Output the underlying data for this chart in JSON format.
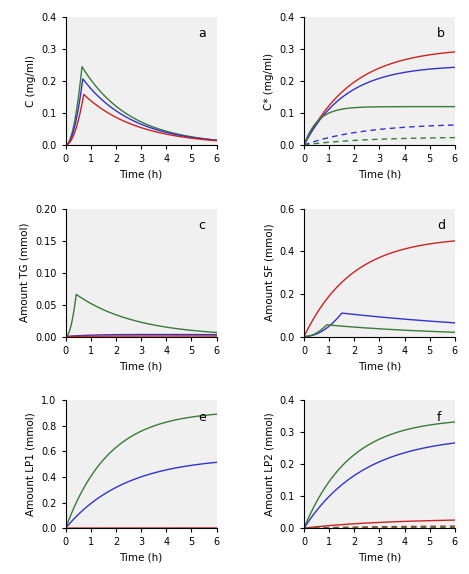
{
  "panel_labels": [
    "a",
    "b",
    "c",
    "d",
    "e",
    "f"
  ],
  "t_max": 6.0,
  "colors": {
    "green": "#3A7A3A",
    "blue": "#3333CC",
    "red": "#CC2222",
    "gray": "#888888"
  },
  "panel_a": {
    "ylabel": "C (mg/ml)",
    "xlabel": "Time (h)",
    "ylim": [
      0,
      0.4
    ],
    "yticks": [
      0,
      0.1,
      0.2,
      0.3,
      0.4
    ],
    "xlim": [
      0,
      6
    ],
    "xticks": [
      0,
      1,
      2,
      3,
      4,
      5,
      6
    ]
  },
  "panel_b": {
    "ylabel": "C* (mg/ml)",
    "xlabel": "Time (h)",
    "ylim": [
      0,
      0.4
    ],
    "yticks": [
      0,
      0.1,
      0.2,
      0.3,
      0.4
    ],
    "xlim": [
      0,
      6
    ],
    "xticks": [
      0,
      1,
      2,
      3,
      4,
      5,
      6
    ]
  },
  "panel_c": {
    "ylabel": "Amount TG (mmol)",
    "xlabel": "Time (h)",
    "ylim": [
      0,
      0.2
    ],
    "yticks": [
      0,
      0.05,
      0.1,
      0.15,
      0.2
    ],
    "xlim": [
      0,
      6
    ],
    "xticks": [
      0,
      1,
      2,
      3,
      4,
      5,
      6
    ]
  },
  "panel_d": {
    "ylabel": "Amount SF (mmol)",
    "xlabel": "Time (h)",
    "ylim": [
      0,
      0.6
    ],
    "yticks": [
      0,
      0.2,
      0.4,
      0.6
    ],
    "xlim": [
      0,
      6
    ],
    "xticks": [
      0,
      1,
      2,
      3,
      4,
      5,
      6
    ]
  },
  "panel_e": {
    "ylabel": "Amount LP1 (mmol)",
    "xlabel": "Time (h)",
    "ylim": [
      0,
      1.0
    ],
    "yticks": [
      0,
      0.2,
      0.4,
      0.6,
      0.8,
      1.0
    ],
    "xlim": [
      0,
      6
    ],
    "xticks": [
      0,
      1,
      2,
      3,
      4,
      5,
      6
    ]
  },
  "panel_f": {
    "ylabel": "Amount LP2 (mmol)",
    "xlabel": "Time (h)",
    "ylim": [
      0,
      0.4
    ],
    "yticks": [
      0,
      0.1,
      0.2,
      0.3,
      0.4
    ],
    "xlim": [
      0,
      6
    ],
    "xticks": [
      0,
      1,
      2,
      3,
      4,
      5,
      6
    ]
  }
}
